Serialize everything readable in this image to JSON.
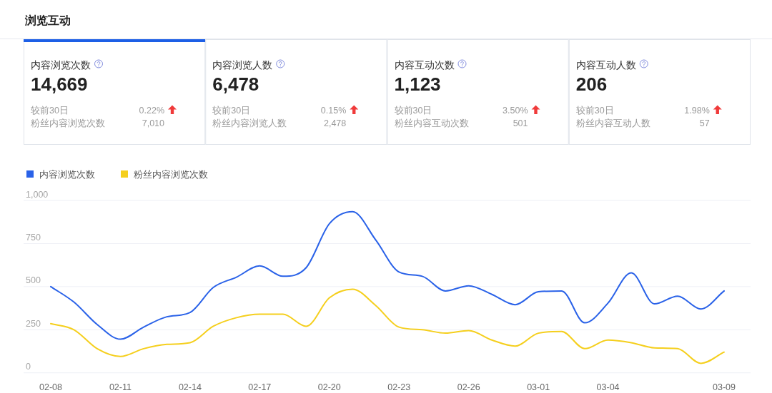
{
  "chart_data": [
    {
      "type": "other",
      "title": "浏览互动"
    },
    {
      "type": "other",
      "title": "内容浏览次数",
      "annotations": [
        "14,669",
        "较前30日",
        "0.22%",
        "粉丝内容浏览次数",
        "7,010"
      ]
    },
    {
      "type": "other",
      "title": "内容浏览人数",
      "annotations": [
        "6,478",
        "较前30日",
        "0.15%",
        "粉丝内容浏览人数",
        "2,478"
      ]
    },
    {
      "type": "other",
      "title": "内容互动次数",
      "annotations": [
        "1,123",
        "较前30日",
        "3.50%",
        "粉丝内容互动次数",
        "501"
      ]
    },
    {
      "type": "other",
      "title": "内容互动人数",
      "annotations": [
        "206",
        "较前30日",
        "1.98%",
        "粉丝内容互动人数",
        "57"
      ]
    },
    {
      "type": "line",
      "categories": [
        "02-08",
        null,
        null,
        "02-11",
        null,
        null,
        "02-14",
        null,
        null,
        "02-17",
        null,
        null,
        "02-20",
        null,
        null,
        "02-23",
        null,
        null,
        "02-26",
        null,
        null,
        "03-01",
        null,
        null,
        "03-04",
        null,
        null,
        null,
        null,
        "03-09"
      ],
      "series": [
        {
          "name": "内容浏览次数",
          "color": "#2a62e8",
          "values": [
            500,
            410,
            280,
            195,
            265,
            325,
            350,
            495,
            555,
            620,
            560,
            610,
            865,
            935,
            770,
            585,
            560,
            475,
            505,
            455,
            395,
            470,
            475,
            290,
            405,
            580,
            400,
            445,
            370,
            475
          ]
        },
        {
          "name": "粉丝内容浏览次数",
          "color": "#f5cf1d",
          "values": [
            285,
            250,
            140,
            95,
            140,
            165,
            175,
            270,
            320,
            340,
            340,
            270,
            435,
            485,
            390,
            265,
            250,
            230,
            245,
            190,
            155,
            230,
            240,
            140,
            190,
            175,
            145,
            140,
            55,
            120
          ]
        }
      ],
      "ylim": [
        0,
        1000
      ],
      "yticks": [
        0,
        250,
        500,
        750,
        {
          "value": 1000,
          "label": "1,000"
        }
      ],
      "grid": "y",
      "legend": "top left"
    }
  ]
}
